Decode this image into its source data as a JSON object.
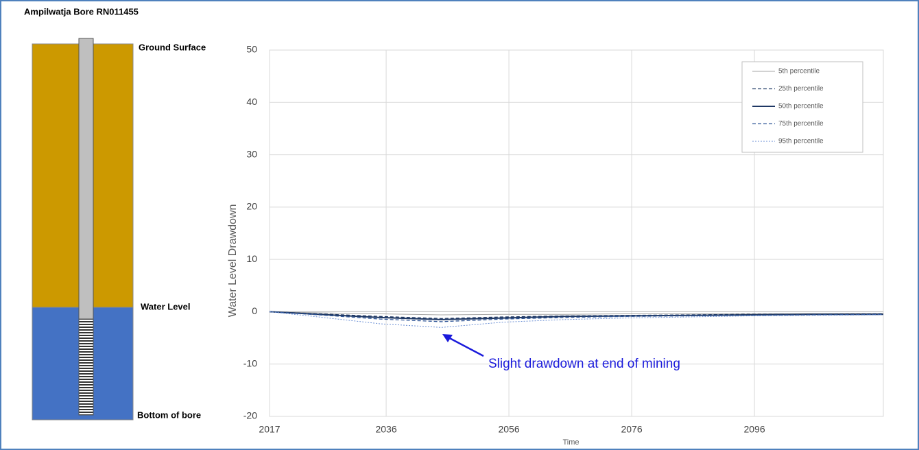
{
  "diagram": {
    "title": "Ampilwatja Bore RN011455",
    "ground_label": "Ground Surface",
    "water_label": "Water Level",
    "bottom_label": "Bottom of bore"
  },
  "chart_data": {
    "type": "line",
    "y_label": "Water Level Drawdown",
    "x_label": "Time",
    "annotation": "Slight drawdown at end of mining",
    "x": [
      2017,
      2025,
      2035,
      2045,
      2055,
      2065,
      2075,
      2085,
      2095,
      2105,
      2117
    ],
    "series": [
      {
        "name": "5th percentile",
        "color": "#a6a6a6",
        "dash": "",
        "width": 1,
        "values": [
          0,
          -0.2,
          -0.4,
          -0.6,
          -0.5,
          -0.5,
          -0.4,
          -0.4,
          -0.3,
          -0.3,
          -0.3
        ]
      },
      {
        "name": "25th percentile",
        "color": "#1f3864",
        "dash": "5 3",
        "width": 1.3,
        "values": [
          0,
          -0.4,
          -0.9,
          -1.3,
          -1.0,
          -0.8,
          -0.7,
          -0.6,
          -0.5,
          -0.5,
          -0.4
        ]
      },
      {
        "name": "50th percentile",
        "color": "#1f3864",
        "dash": "",
        "width": 2,
        "values": [
          0,
          -0.5,
          -1.1,
          -1.5,
          -1.2,
          -0.9,
          -0.8,
          -0.7,
          -0.6,
          -0.5,
          -0.5
        ]
      },
      {
        "name": "75th percentile",
        "color": "#2e5597",
        "dash": "5 3",
        "width": 1.3,
        "values": [
          0,
          -0.6,
          -1.4,
          -1.9,
          -1.4,
          -1.1,
          -0.9,
          -0.8,
          -0.7,
          -0.6,
          -0.5
        ]
      },
      {
        "name": "95th percentile",
        "color": "#6b8fd4",
        "dash": "2 2",
        "width": 1,
        "values": [
          0,
          -1,
          -2.3,
          -3,
          -2,
          -1.5,
          -1.2,
          -1,
          -0.8,
          -0.7,
          -0.6
        ]
      }
    ],
    "xlim": [
      2017,
      2117
    ],
    "xticks": [
      2017,
      2036,
      2056,
      2076,
      2096
    ],
    "ylim": [
      -20,
      50
    ],
    "yticks": [
      -20,
      -10,
      0,
      10,
      20,
      30,
      40,
      50
    ],
    "grid": true,
    "legend": "upper right",
    "annotation_color": "#1a1adb"
  }
}
